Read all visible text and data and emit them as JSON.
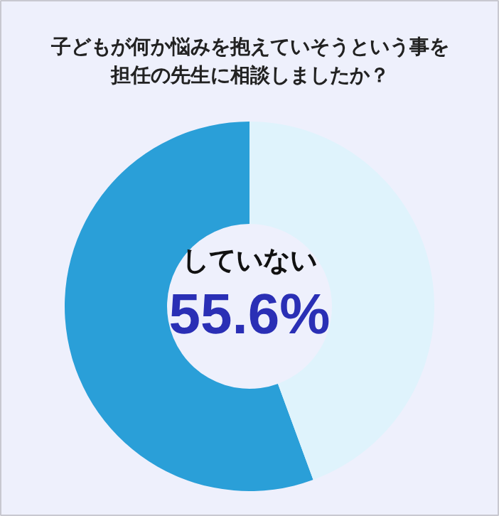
{
  "chart_data": {
    "type": "donut",
    "title": "子どもが何か悩みを抱えていそうという事を担任の先生に相談しましたか？",
    "categories": [
      "していない",
      null
    ],
    "values": [
      55.6,
      44.4
    ],
    "colors": [
      "#2a9fd8",
      "#dff3fc"
    ],
    "value_labels": [
      "55.6%",
      null
    ]
  }
}
